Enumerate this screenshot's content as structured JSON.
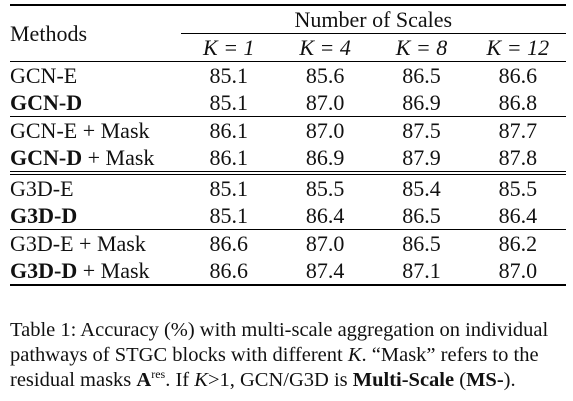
{
  "table": {
    "methods_header": "Methods",
    "scales_header": "Number of Scales",
    "k_headers": [
      "K = 1",
      "K = 4",
      "K = 8",
      "K = 12"
    ],
    "groups": [
      {
        "rows": [
          {
            "method": "GCN-E",
            "method_bold": "",
            "method_suffix": "",
            "values": [
              "85.1",
              "85.6",
              "86.5",
              "86.6"
            ]
          },
          {
            "method": "",
            "method_bold": "GCN-D",
            "method_suffix": "",
            "values": [
              "85.1",
              "87.0",
              "86.9",
              "86.8"
            ]
          }
        ]
      },
      {
        "rows": [
          {
            "method": "GCN-E + Mask",
            "method_bold": "",
            "method_suffix": "",
            "values": [
              "86.1",
              "87.0",
              "87.5",
              "87.7"
            ]
          },
          {
            "method": "",
            "method_bold": "GCN-D",
            "method_suffix": " + Mask",
            "values": [
              "86.1",
              "86.9",
              "87.9",
              "87.8"
            ]
          }
        ]
      },
      {
        "rows": [
          {
            "method": "G3D-E",
            "method_bold": "",
            "method_suffix": "",
            "values": [
              "85.1",
              "85.5",
              "85.4",
              "85.5"
            ]
          },
          {
            "method": "",
            "method_bold": "G3D-D",
            "method_suffix": "",
            "values": [
              "85.1",
              "86.4",
              "86.5",
              "86.4"
            ]
          }
        ]
      },
      {
        "rows": [
          {
            "method": "G3D-E + Mask",
            "method_bold": "",
            "method_suffix": "",
            "values": [
              "86.6",
              "87.0",
              "86.5",
              "86.2"
            ]
          },
          {
            "method": "",
            "method_bold": "G3D-D",
            "method_suffix": " + Mask",
            "values": [
              "86.6",
              "87.4",
              "87.1",
              "87.0"
            ]
          }
        ]
      }
    ]
  },
  "caption": {
    "part1": "Table 1: Accuracy (%) with multi-scale aggregation on individual pathways of STGC blocks with different ",
    "k_var": "K",
    "part2": ". “Mask” refers to the residual masks ",
    "mask_symbol": "A",
    "mask_sup": "res",
    "part3": ". If ",
    "k_var2": "K",
    "part4": ">1, GCN/G3D is ",
    "ms_bold": "Multi-Scale",
    "part5": " (",
    "ms_abbr": "MS-",
    "part6": ")."
  }
}
